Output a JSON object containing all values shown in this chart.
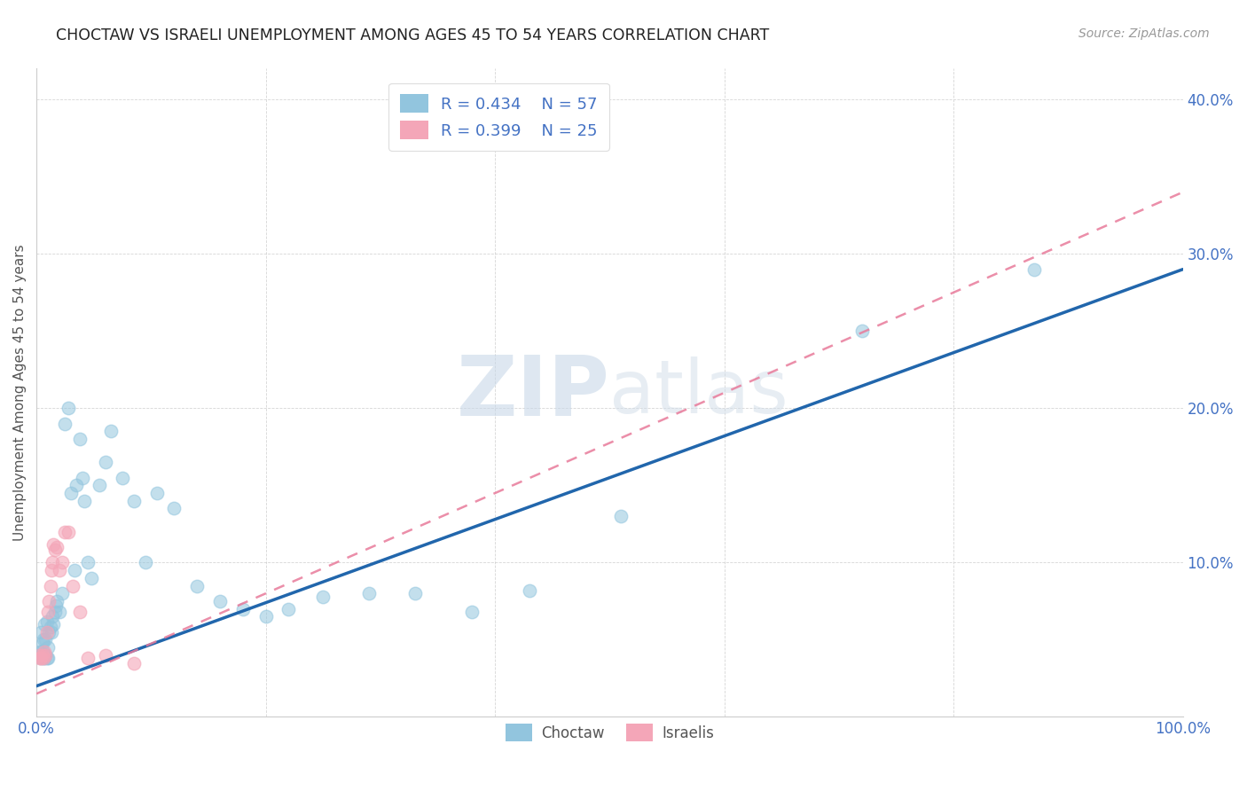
{
  "title": "CHOCTAW VS ISRAELI UNEMPLOYMENT AMONG AGES 45 TO 54 YEARS CORRELATION CHART",
  "source": "Source: ZipAtlas.com",
  "ylabel": "Unemployment Among Ages 45 to 54 years",
  "xlim": [
    0,
    1.0
  ],
  "ylim": [
    0,
    0.42
  ],
  "ytick_positions": [
    0.1,
    0.2,
    0.3,
    0.4
  ],
  "ytick_labels": [
    "10.0%",
    "20.0%",
    "30.0%",
    "40.0%"
  ],
  "choctaw_R": 0.434,
  "choctaw_N": 57,
  "israelis_R": 0.399,
  "israelis_N": 25,
  "choctaw_color": "#92c5de",
  "israelis_color": "#f4a6b8",
  "choctaw_line_color": "#2166ac",
  "israelis_line_color": "#e87a9a",
  "watermark_color": "#d0dce8",
  "background_color": "#ffffff",
  "tick_color": "#4472c4",
  "choctaw_x": [
    0.002,
    0.003,
    0.004,
    0.004,
    0.005,
    0.005,
    0.006,
    0.006,
    0.007,
    0.007,
    0.008,
    0.008,
    0.009,
    0.009,
    0.01,
    0.01,
    0.011,
    0.012,
    0.013,
    0.014,
    0.015,
    0.016,
    0.017,
    0.018,
    0.02,
    0.022,
    0.025,
    0.028,
    0.03,
    0.033,
    0.035,
    0.038,
    0.04,
    0.042,
    0.045,
    0.048,
    0.055,
    0.06,
    0.065,
    0.075,
    0.085,
    0.095,
    0.105,
    0.12,
    0.14,
    0.16,
    0.18,
    0.2,
    0.22,
    0.25,
    0.29,
    0.33,
    0.38,
    0.43,
    0.51,
    0.72,
    0.87
  ],
  "choctaw_y": [
    0.04,
    0.042,
    0.038,
    0.055,
    0.043,
    0.048,
    0.038,
    0.05,
    0.038,
    0.06,
    0.04,
    0.05,
    0.038,
    0.062,
    0.038,
    0.045,
    0.055,
    0.058,
    0.055,
    0.065,
    0.06,
    0.068,
    0.072,
    0.075,
    0.068,
    0.08,
    0.19,
    0.2,
    0.145,
    0.095,
    0.15,
    0.18,
    0.155,
    0.14,
    0.1,
    0.09,
    0.15,
    0.165,
    0.185,
    0.155,
    0.14,
    0.1,
    0.145,
    0.135,
    0.085,
    0.075,
    0.07,
    0.065,
    0.07,
    0.078,
    0.08,
    0.08,
    0.068,
    0.082,
    0.13,
    0.25,
    0.29
  ],
  "israelis_x": [
    0.002,
    0.003,
    0.004,
    0.005,
    0.006,
    0.007,
    0.008,
    0.009,
    0.01,
    0.011,
    0.012,
    0.013,
    0.014,
    0.015,
    0.016,
    0.018,
    0.02,
    0.022,
    0.025,
    0.028,
    0.032,
    0.038,
    0.045,
    0.06,
    0.085
  ],
  "israelis_y": [
    0.04,
    0.038,
    0.038,
    0.04,
    0.038,
    0.042,
    0.04,
    0.055,
    0.068,
    0.075,
    0.085,
    0.095,
    0.1,
    0.112,
    0.108,
    0.11,
    0.095,
    0.1,
    0.12,
    0.12,
    0.085,
    0.068,
    0.038,
    0.04,
    0.035
  ],
  "choctaw_line_x0": 0.0,
  "choctaw_line_y0": 0.02,
  "choctaw_line_x1": 1.0,
  "choctaw_line_y1": 0.29,
  "israelis_line_x0": 0.0,
  "israelis_line_y0": 0.015,
  "israelis_line_x1": 1.0,
  "israelis_line_y1": 0.34
}
